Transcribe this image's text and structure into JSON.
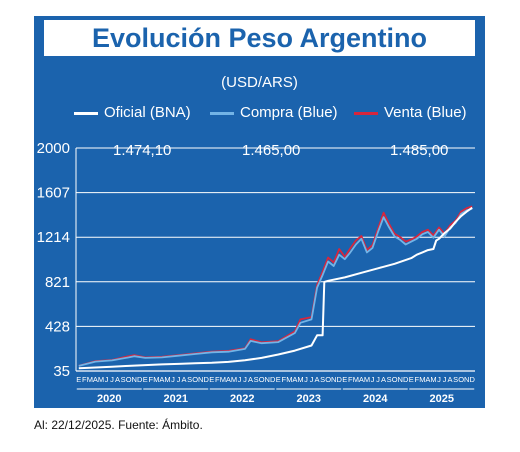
{
  "source_note": "Al: 22/12/2025. Fuente: Ámbito.",
  "colors": {
    "background": "#1b63ad",
    "oficial": "#ffffff",
    "compra": "#73b4e6",
    "venta": "#d7263d",
    "grid": "#ffffff"
  },
  "chart_data": {
    "type": "line",
    "title": "Evolución Peso Argentino",
    "subtitle": "(USD/ARS)",
    "xlabel": "",
    "ylabel": "",
    "ylim": [
      35,
      2000
    ],
    "yticks": [
      35,
      428,
      821,
      1214,
      1607,
      2000
    ],
    "ytick_labels": [
      "35",
      "428",
      "821",
      "1214",
      "1607",
      "2000"
    ],
    "grid": true,
    "legend_placement": "top",
    "month_letters": [
      "E",
      "F",
      "M",
      "A",
      "M",
      "J",
      "J",
      "A",
      "S",
      "O",
      "N",
      "D"
    ],
    "years": [
      "2020",
      "2021",
      "2022",
      "2023",
      "2024",
      "2025"
    ],
    "x_unit": "month index from Jan 2020 (0) to Dec 2025 (71)",
    "series": [
      {
        "name": "Oficial (BNA)",
        "last_value": "1.474,10",
        "points": [
          [
            0,
            60
          ],
          [
            3,
            66
          ],
          [
            6,
            73
          ],
          [
            9,
            80
          ],
          [
            12,
            87
          ],
          [
            15,
            93
          ],
          [
            18,
            98
          ],
          [
            21,
            103
          ],
          [
            24,
            107
          ],
          [
            27,
            115
          ],
          [
            30,
            130
          ],
          [
            33,
            150
          ],
          [
            36,
            180
          ],
          [
            39,
            215
          ],
          [
            42,
            260
          ],
          [
            43,
            350
          ],
          [
            44,
            350
          ],
          [
            44.3,
            820
          ],
          [
            45,
            830
          ],
          [
            48,
            860
          ],
          [
            51,
            900
          ],
          [
            54,
            940
          ],
          [
            57,
            980
          ],
          [
            60,
            1030
          ],
          [
            61,
            1060
          ],
          [
            62,
            1080
          ],
          [
            63,
            1100
          ],
          [
            64,
            1110
          ],
          [
            64.5,
            1185
          ],
          [
            65,
            1200
          ],
          [
            66,
            1250
          ],
          [
            67,
            1290
          ],
          [
            68,
            1350
          ],
          [
            69,
            1400
          ],
          [
            70,
            1440
          ],
          [
            71,
            1474
          ]
        ]
      },
      {
        "name": "Compra (Blue)",
        "last_value": "1.465,00",
        "points": [
          [
            0,
            80
          ],
          [
            3,
            118
          ],
          [
            6,
            128
          ],
          [
            9,
            155
          ],
          [
            10,
            165
          ],
          [
            12,
            150
          ],
          [
            15,
            155
          ],
          [
            18,
            170
          ],
          [
            21,
            185
          ],
          [
            24,
            200
          ],
          [
            27,
            205
          ],
          [
            30,
            230
          ],
          [
            31,
            300
          ],
          [
            33,
            280
          ],
          [
            36,
            290
          ],
          [
            39,
            370
          ],
          [
            40,
            460
          ],
          [
            42,
            490
          ],
          [
            43,
            770
          ],
          [
            44,
            880
          ],
          [
            45,
            1000
          ],
          [
            46,
            960
          ],
          [
            47,
            1060
          ],
          [
            48,
            1020
          ],
          [
            49,
            1080
          ],
          [
            50,
            1150
          ],
          [
            51,
            1200
          ],
          [
            52,
            1080
          ],
          [
            53,
            1120
          ],
          [
            54,
            1260
          ],
          [
            55,
            1390
          ],
          [
            56,
            1300
          ],
          [
            57,
            1220
          ],
          [
            58,
            1190
          ],
          [
            59,
            1150
          ],
          [
            60,
            1175
          ],
          [
            61,
            1200
          ],
          [
            62,
            1240
          ],
          [
            63,
            1260
          ],
          [
            64,
            1210
          ],
          [
            65,
            1280
          ],
          [
            66,
            1220
          ],
          [
            67,
            1300
          ],
          [
            68,
            1340
          ],
          [
            69,
            1420
          ],
          [
            70,
            1450
          ],
          [
            71,
            1465
          ]
        ]
      },
      {
        "name": "Venta (Blue)",
        "last_value": "1.485,00",
        "points": [
          [
            0,
            82
          ],
          [
            3,
            122
          ],
          [
            6,
            132
          ],
          [
            9,
            165
          ],
          [
            10,
            175
          ],
          [
            12,
            155
          ],
          [
            15,
            160
          ],
          [
            18,
            175
          ],
          [
            21,
            190
          ],
          [
            24,
            206
          ],
          [
            27,
            212
          ],
          [
            30,
            235
          ],
          [
            31,
            315
          ],
          [
            33,
            288
          ],
          [
            36,
            298
          ],
          [
            39,
            385
          ],
          [
            40,
            490
          ],
          [
            42,
            510
          ],
          [
            43,
            795
          ],
          [
            44,
            910
          ],
          [
            45,
            1035
          ],
          [
            46,
            990
          ],
          [
            47,
            1110
          ],
          [
            48,
            1040
          ],
          [
            49,
            1115
          ],
          [
            50,
            1185
          ],
          [
            51,
            1225
          ],
          [
            52,
            1100
          ],
          [
            53,
            1145
          ],
          [
            54,
            1290
          ],
          [
            55,
            1430
          ],
          [
            56,
            1330
          ],
          [
            57,
            1245
          ],
          [
            58,
            1215
          ],
          [
            59,
            1175
          ],
          [
            60,
            1195
          ],
          [
            61,
            1220
          ],
          [
            62,
            1260
          ],
          [
            63,
            1280
          ],
          [
            64,
            1230
          ],
          [
            65,
            1300
          ],
          [
            66,
            1245
          ],
          [
            67,
            1320
          ],
          [
            68,
            1360
          ],
          [
            69,
            1440
          ],
          [
            70,
            1470
          ],
          [
            71,
            1485
          ]
        ]
      }
    ]
  }
}
